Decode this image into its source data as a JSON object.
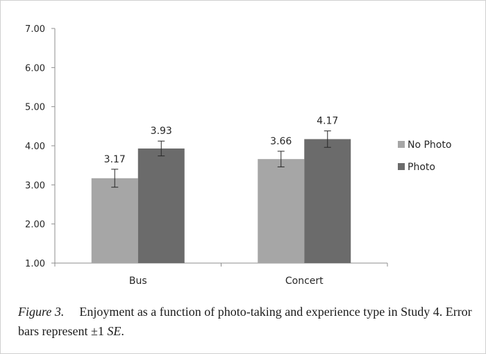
{
  "chart_data": {
    "type": "bar",
    "categories": [
      "Bus",
      "Concert"
    ],
    "series": [
      {
        "name": "No Photo",
        "values": [
          3.17,
          3.66
        ],
        "se": [
          0.23,
          0.2
        ],
        "color": "#a6a6a6"
      },
      {
        "name": "Photo",
        "values": [
          3.93,
          4.17
        ],
        "se": [
          0.19,
          0.21
        ],
        "color": "#6b6b6b"
      }
    ],
    "data_labels": [
      [
        "3.17",
        "3.66"
      ],
      [
        "3.93",
        "4.17"
      ]
    ],
    "yticks": [
      "1.00",
      "2.00",
      "3.00",
      "4.00",
      "5.00",
      "6.00",
      "7.00"
    ],
    "ylim": [
      1,
      7
    ],
    "legend_position": "right",
    "grid": false
  },
  "caption": {
    "figure_label": "Figure 3.",
    "text_main": "Enjoyment as a function of photo-taking and experience type in Study 4. Error bars represent ±1 ",
    "text_se": "SE",
    "text_end": "."
  }
}
